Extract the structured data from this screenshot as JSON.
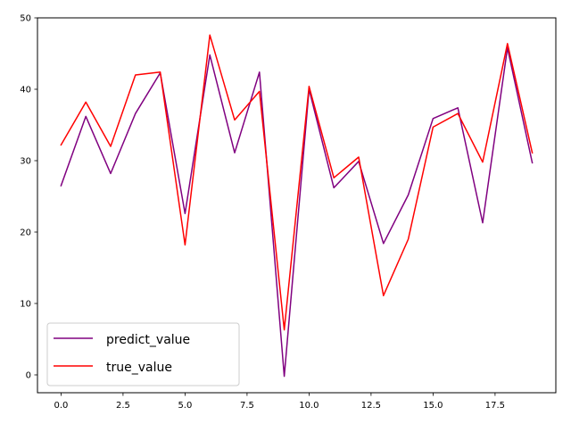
{
  "chart_data": {
    "type": "line",
    "title": "",
    "xlabel": "",
    "ylabel": "",
    "x": [
      0,
      1,
      2,
      3,
      4,
      5,
      6,
      7,
      8,
      9,
      10,
      11,
      12,
      13,
      14,
      15,
      16,
      17,
      18,
      19
    ],
    "xlim": [
      -0.95,
      19.95
    ],
    "ylim": [
      -2.5,
      50
    ],
    "xticks": [
      0.0,
      2.5,
      5.0,
      7.5,
      10.0,
      12.5,
      15.0,
      17.5
    ],
    "xtick_labels": [
      "0.0",
      "2.5",
      "5.0",
      "7.5",
      "10.0",
      "12.5",
      "15.0",
      "17.5"
    ],
    "yticks": [
      0,
      10,
      20,
      30,
      40,
      50
    ],
    "ytick_labels": [
      "0",
      "10",
      "20",
      "30",
      "40",
      "50"
    ],
    "grid": false,
    "legend_position": "bottom-left",
    "series": [
      {
        "name": "predict_value",
        "color": "#800080",
        "values": [
          26.5,
          36.2,
          28.2,
          36.6,
          42.3,
          22.6,
          44.8,
          31.1,
          42.4,
          -0.2,
          40.0,
          26.2,
          29.9,
          18.4,
          25.2,
          35.9,
          37.4,
          21.3,
          45.8,
          29.7
        ]
      },
      {
        "name": "true_value",
        "color": "#ff0000",
        "values": [
          32.2,
          38.2,
          32.0,
          42.0,
          42.4,
          18.2,
          47.6,
          35.7,
          39.7,
          6.3,
          40.4,
          27.6,
          30.5,
          11.1,
          19.0,
          34.7,
          36.6,
          29.8,
          46.4,
          31.1
        ]
      }
    ]
  }
}
